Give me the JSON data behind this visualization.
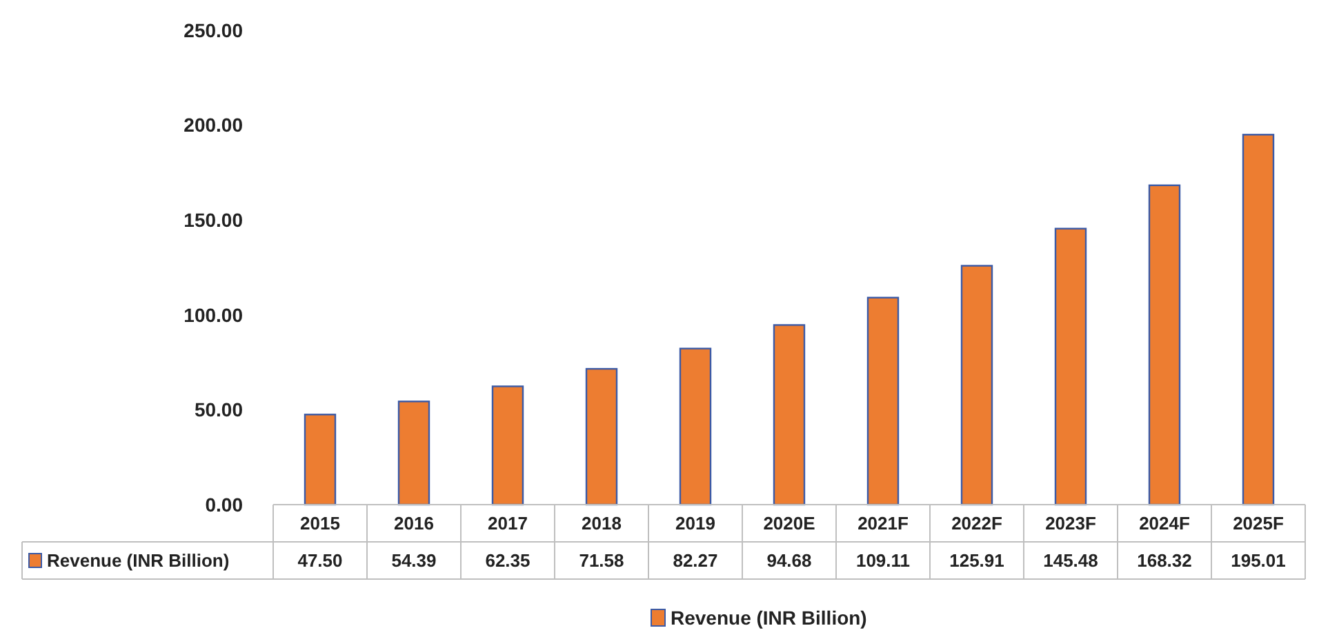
{
  "chart_data": {
    "type": "bar",
    "categories": [
      "2015",
      "2016",
      "2017",
      "2018",
      "2019",
      "2020E",
      "2021F",
      "2022F",
      "2023F",
      "2024F",
      "2025F"
    ],
    "series": [
      {
        "name": "Revenue (INR Billion)",
        "color": "#ed7d31",
        "values": [
          47.5,
          54.39,
          62.35,
          71.58,
          82.27,
          94.68,
          109.11,
          125.91,
          145.48,
          168.32,
          195.01
        ],
        "value_labels": [
          "47.50",
          "54.39",
          "62.35",
          "71.58",
          "82.27",
          "94.68",
          "109.11",
          "125.91",
          "145.48",
          "168.32",
          "195.01"
        ]
      }
    ],
    "ylim": [
      0,
      250
    ],
    "yticks": [
      {
        "value": 0,
        "label": "0.00"
      },
      {
        "value": 50,
        "label": "50.00"
      },
      {
        "value": 100,
        "label": "100.00"
      },
      {
        "value": 150,
        "label": "150.00"
      },
      {
        "value": 200,
        "label": "200.00"
      },
      {
        "value": 250,
        "label": "250.00"
      }
    ],
    "grid": false,
    "legend": "bottom"
  }
}
